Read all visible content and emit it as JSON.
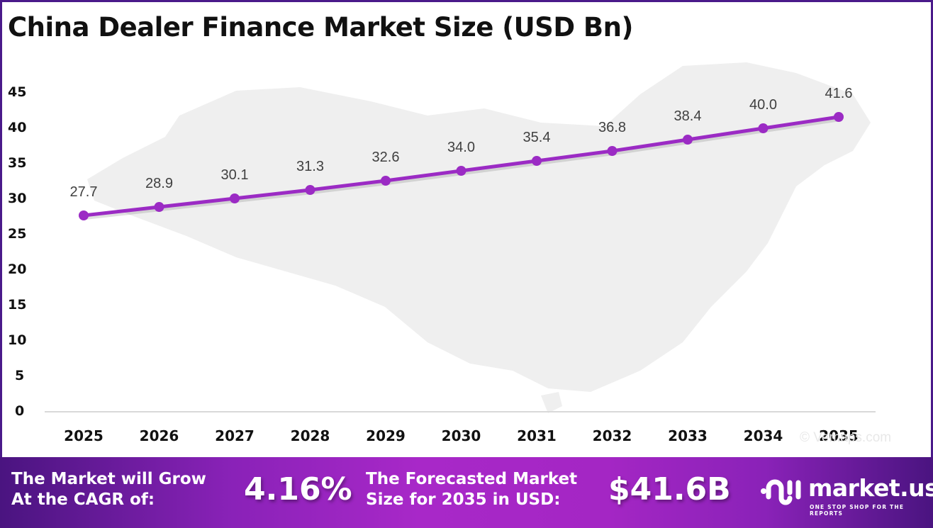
{
  "title": "China Dealer Finance Market Size (USD Bn)",
  "chart_data": {
    "type": "line",
    "title": "China Dealer Finance Market Size (USD Bn)",
    "xlabel": "",
    "ylabel": "",
    "categories": [
      "2025",
      "2026",
      "2027",
      "2028",
      "2029",
      "2030",
      "2031",
      "2032",
      "2033",
      "2034",
      "2035"
    ],
    "series": [
      {
        "name": "Market Size (USD Bn)",
        "values": [
          27.7,
          28.9,
          30.1,
          31.3,
          32.6,
          34.0,
          35.4,
          36.8,
          38.4,
          40.0,
          41.6
        ],
        "color": "#9b2bc4"
      }
    ],
    "value_labels": [
      "27.7",
      "28.9",
      "30.1",
      "31.3",
      "32.6",
      "34.0",
      "35.4",
      "36.8",
      "38.4",
      "40.0",
      "41.6"
    ],
    "ylim": [
      0,
      45
    ],
    "yticks": [
      "0",
      "5",
      "10",
      "15",
      "20",
      "25",
      "30",
      "35",
      "40",
      "45"
    ],
    "grid": false,
    "legend": "none"
  },
  "watermark": "© Vemaps.com",
  "footer": {
    "cagr_label_line1": "The Market will Grow",
    "cagr_label_line2": "At the CAGR of:",
    "cagr_value": "4.16%",
    "forecast_label_line1": "The Forecasted Market",
    "forecast_label_line2": "Size for 2035 in USD:",
    "forecast_value": "$41.6B",
    "logo_name": "market.us",
    "logo_tagline": "ONE STOP SHOP FOR THE REPORTS",
    "logo_icon": "market-us-logo-icon"
  },
  "colors": {
    "line": "#9b2bc4",
    "frame": "#4a1a8a",
    "footer_gradient_start": "#4a1480",
    "footer_gradient_mid": "#a828c8"
  }
}
